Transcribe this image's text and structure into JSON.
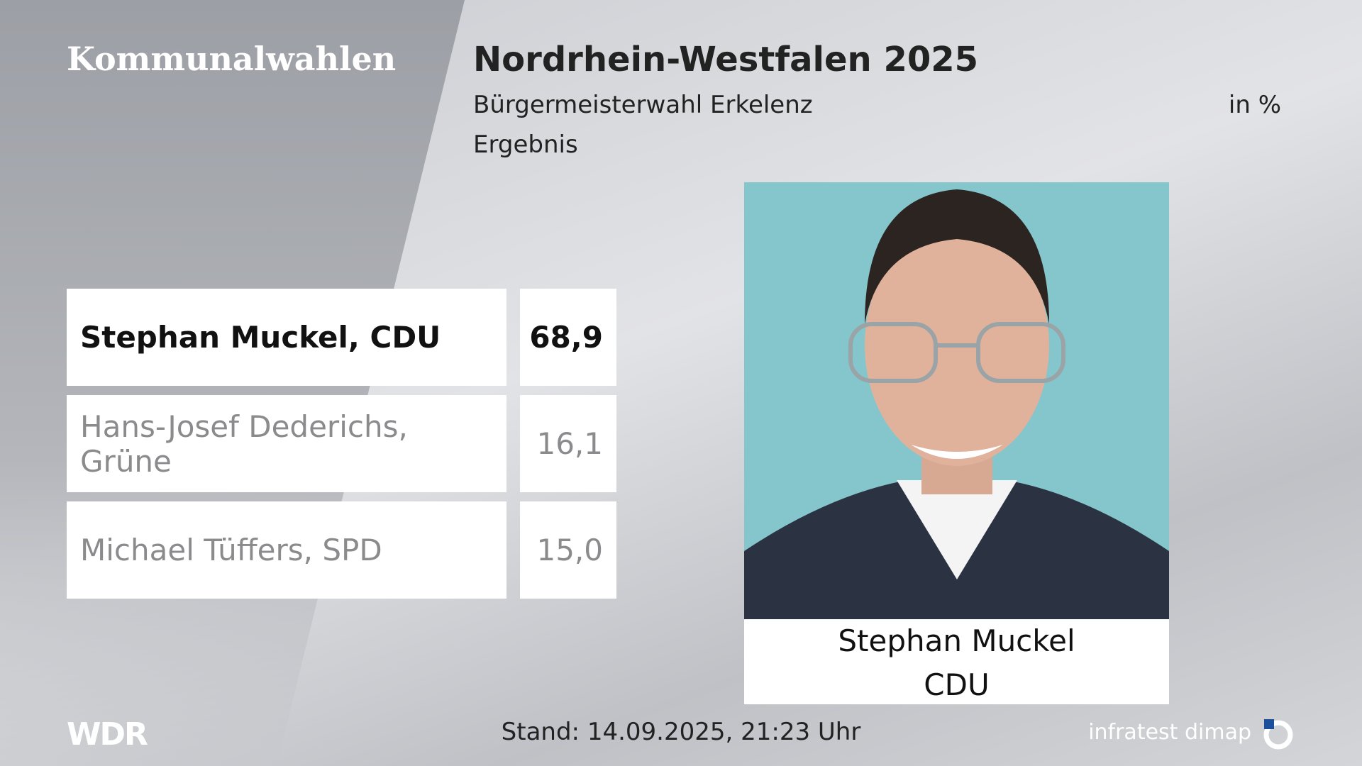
{
  "header": {
    "brand": "Kommunalwahlen",
    "title": "Nordrhein-Westfalen 2025",
    "subtitle": "Bürgermeisterwahl Erkelenz",
    "unit": "in %",
    "label": "Ergebnis"
  },
  "results": {
    "rows": [
      [
        "Stephan Muckel, CDU",
        "68,9"
      ],
      [
        "Hans-Josef Dederichs, Grüne",
        "16,1"
      ],
      [
        "Michael Tüffers, SPD",
        "15,0"
      ]
    ]
  },
  "photo": {
    "name": "Stephan Muckel",
    "party": "CDU"
  },
  "footer": {
    "logo": "WDR",
    "stand": "Stand: 14.09.2025, 21:23 Uhr",
    "source": "infratest dimap"
  }
}
